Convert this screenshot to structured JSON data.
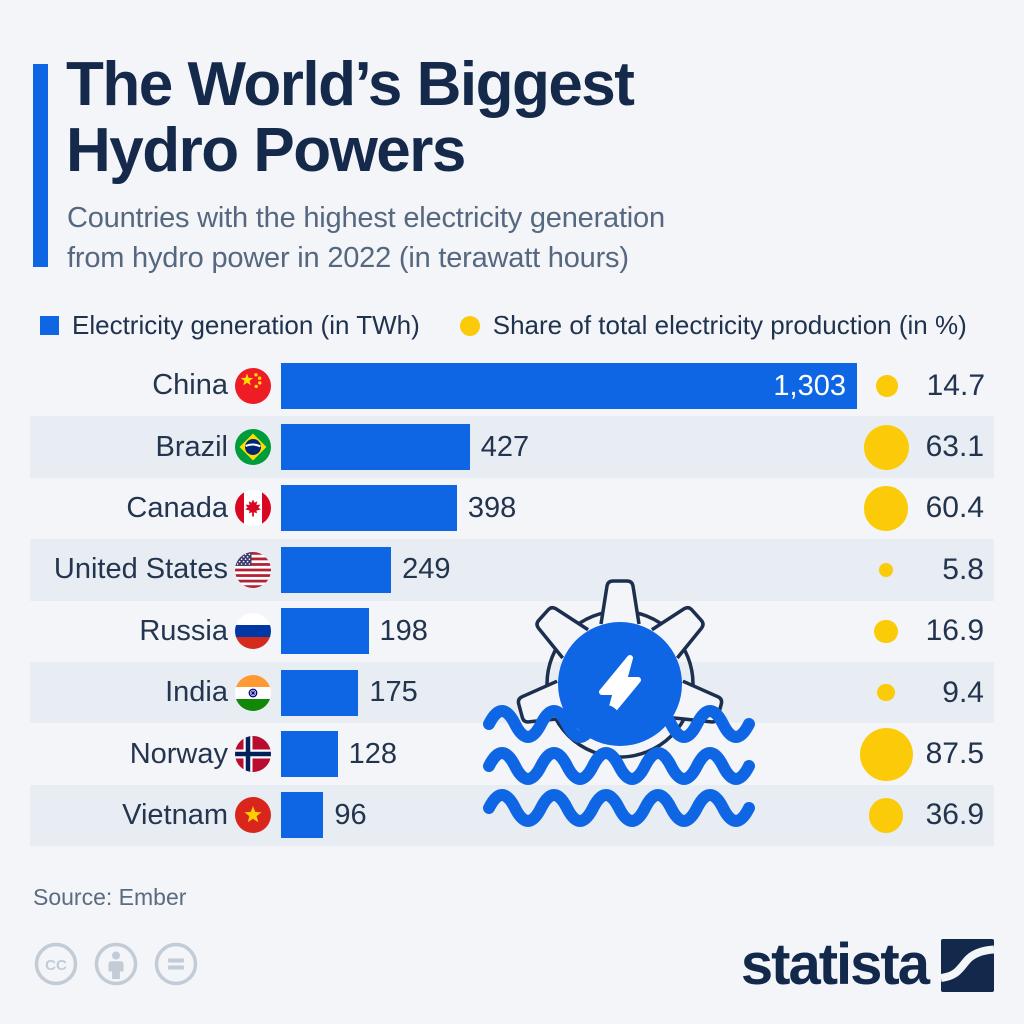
{
  "header": {
    "title_line1": "The World’s Biggest",
    "title_line2": "Hydro Powers",
    "subtitle_line1": "Countries with the highest electricity generation",
    "subtitle_line2": "from hydro power in 2022 (in terawatt hours)"
  },
  "legend": {
    "bar_label": "Electricity generation (in TWh)",
    "share_label": "Share of total electricity production (in %)"
  },
  "colors": {
    "bar_blue": "#0f66e4",
    "dot_yellow": "#fbcb0a",
    "title_navy": "#15294b",
    "row_stripe": "#e8edf4",
    "background": "#f3f5f9"
  },
  "chart_data": {
    "type": "bar",
    "orientation": "horizontal",
    "title": "The World's Biggest Hydro Powers",
    "xlabel": "Electricity generation (in TWh)",
    "xlim": [
      0,
      1360
    ],
    "series": [
      {
        "name": "Electricity generation (in TWh)",
        "style": "bar"
      },
      {
        "name": "Share of total electricity production (in %)",
        "style": "sized-dot"
      }
    ],
    "rows": [
      {
        "country": "China",
        "flag": "china",
        "generation_twh": 1303,
        "generation_label": "1,303",
        "share_pct": 14.7
      },
      {
        "country": "Brazil",
        "flag": "brazil",
        "generation_twh": 427,
        "generation_label": "427",
        "share_pct": 63.1
      },
      {
        "country": "Canada",
        "flag": "canada",
        "generation_twh": 398,
        "generation_label": "398",
        "share_pct": 60.4
      },
      {
        "country": "United States",
        "flag": "usa",
        "generation_twh": 249,
        "generation_label": "249",
        "share_pct": 5.8
      },
      {
        "country": "Russia",
        "flag": "russia",
        "generation_twh": 198,
        "generation_label": "198",
        "share_pct": 16.9
      },
      {
        "country": "India",
        "flag": "india",
        "generation_twh": 175,
        "generation_label": "175",
        "share_pct": 9.4
      },
      {
        "country": "Norway",
        "flag": "norway",
        "generation_twh": 128,
        "generation_label": "128",
        "share_pct": 87.5
      },
      {
        "country": "Vietnam",
        "flag": "vietnam",
        "generation_twh": 96,
        "generation_label": "96",
        "share_pct": 36.9
      }
    ]
  },
  "icons": {
    "watermark": "hydro-power-gear-wave-icon",
    "license": [
      "cc-icon",
      "attribution-person-icon",
      "equals-icon"
    ],
    "brand_mark": "statista-logo-icon"
  },
  "footer": {
    "source": "Source: Ember",
    "brand": "statista"
  }
}
